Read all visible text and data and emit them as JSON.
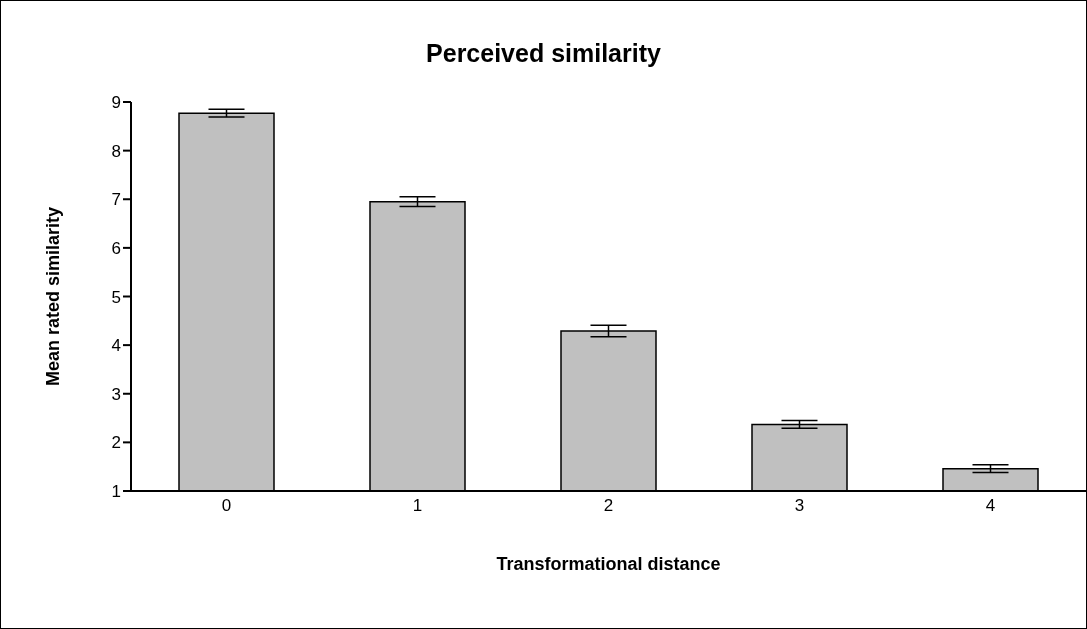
{
  "chart_data": {
    "type": "bar",
    "title": "Perceived similarity",
    "xlabel": "Transformational distance",
    "ylabel": "Mean rated similarity",
    "categories": [
      "0",
      "1",
      "2",
      "3",
      "4"
    ],
    "values": [
      8.77,
      6.95,
      4.29,
      2.37,
      1.46
    ],
    "errors": [
      0.08,
      0.1,
      0.12,
      0.08,
      0.08
    ],
    "color": "#c0c0c0",
    "ylim": [
      1,
      9
    ],
    "yticks": [
      1,
      2,
      3,
      4,
      5,
      6,
      7,
      8,
      9
    ],
    "grid": false,
    "legend": false
  }
}
